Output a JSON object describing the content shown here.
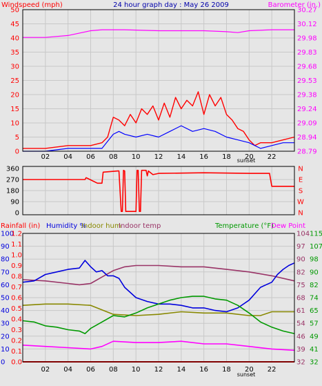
{
  "chart_data": [
    {
      "type": "line",
      "title": "24 hour graph day : May 26 2009",
      "ylabel_left": "Windspeed (mph)",
      "ylabel_right": "Barometer (in.)",
      "y_ticks_left": [
        "0",
        "5",
        "10",
        "15",
        "20",
        "25",
        "30",
        "35",
        "40",
        "45",
        "50"
      ],
      "y_ticks_right": [
        "28.79",
        "28.94",
        "29.09",
        "29.24",
        "29.38",
        "29.53",
        "29.68",
        "29.83",
        "29.98",
        "30.12",
        "30.27"
      ],
      "x_ticks": [
        "02",
        "04",
        "06",
        "08",
        "10",
        "12",
        "14",
        "16",
        "18",
        "20",
        "22",
        ""
      ],
      "sunset_label": "sunset",
      "ylim_left": [
        0,
        50
      ],
      "ylim_right": [
        28.79,
        30.27
      ],
      "grid": true,
      "series": [
        {
          "key": "barometer",
          "axis": "right",
          "color": "#ff00ff",
          "x": [
            0,
            2,
            4,
            6,
            7,
            9,
            12,
            14,
            16,
            18,
            19,
            20,
            22,
            24
          ],
          "y": [
            29.98,
            29.98,
            30.0,
            30.05,
            30.06,
            30.06,
            30.05,
            30.05,
            30.05,
            30.04,
            30.03,
            30.05,
            30.06,
            30.06
          ]
        },
        {
          "key": "wind_gust",
          "axis": "left",
          "color": "#ff0000",
          "x": [
            0,
            2,
            4,
            6,
            7,
            7.5,
            8,
            8.5,
            9,
            9.5,
            10,
            10.5,
            11,
            11.5,
            12,
            12.5,
            13,
            13.5,
            14,
            14.5,
            15,
            15.5,
            16,
            16.5,
            17,
            17.5,
            18,
            18.5,
            19,
            19.5,
            20,
            20.5,
            21,
            22,
            23,
            24
          ],
          "y": [
            1,
            1,
            2,
            2,
            3,
            5,
            12,
            11,
            9,
            13,
            10,
            15,
            13,
            16,
            11,
            17,
            12,
            19,
            15,
            18,
            16,
            21,
            13,
            20,
            16,
            19,
            13,
            11,
            8,
            7,
            4,
            2,
            3,
            3,
            4,
            5
          ]
        },
        {
          "key": "wind_avg",
          "axis": "left",
          "color": "#0000ff",
          "x": [
            0,
            2,
            4,
            6,
            7,
            8,
            8.5,
            9,
            10,
            11,
            12,
            13,
            14,
            15,
            16,
            17,
            18,
            19,
            20,
            21,
            22,
            23,
            24
          ],
          "y": [
            0,
            0,
            1,
            1,
            1,
            6,
            7,
            6,
            5,
            6,
            5,
            7,
            9,
            7,
            8,
            7,
            5,
            4,
            3,
            1,
            2,
            3,
            3
          ]
        }
      ]
    },
    {
      "type": "line",
      "ylabel_left_ticks": [
        "0",
        "90",
        "180",
        "270",
        "360"
      ],
      "ylabel_right_ticks": [
        "N",
        "W",
        "S",
        "E",
        "N"
      ],
      "ylim": [
        0,
        360
      ],
      "series": [
        {
          "key": "wind_direction",
          "color": "#ff0000",
          "x": [
            0,
            5.5,
            5.6,
            6.6,
            7,
            7.1,
            8.4,
            8.5,
            8.7,
            8.8,
            8.9,
            9,
            9.1,
            10,
            10.1,
            10.2,
            10.3,
            10.4,
            10.5,
            10.9,
            11,
            11.1,
            11.5,
            12,
            16,
            20,
            21.8,
            22,
            24
          ],
          "y": [
            270,
            270,
            285,
            240,
            240,
            330,
            340,
            340,
            10,
            10,
            345,
            340,
            10,
            10,
            345,
            345,
            10,
            10,
            345,
            345,
            300,
            340,
            310,
            320,
            325,
            320,
            320,
            215,
            215
          ]
        }
      ]
    },
    {
      "type": "line",
      "labels_left": [
        "Rainfall (in)",
        "Humidity %",
        "Indoor hum",
        "Indoor temp"
      ],
      "labels_right": [
        "Temperature (°F)",
        "Dew Point"
      ],
      "rain_ticks": [
        "0.0",
        "0.1",
        "0.2",
        "0.3",
        "0.4",
        "0.5",
        "0.6",
        "0.7",
        "0.8",
        "0.9",
        "1.0",
        "1.1",
        "1.2"
      ],
      "humidity_ticks": [
        "0",
        "10",
        "20",
        "30",
        "40",
        "50",
        "60",
        "70",
        "80",
        "90",
        "100"
      ],
      "temp_ticks_a": [
        "32",
        "39",
        "46",
        "54",
        "61",
        "68",
        "75",
        "82",
        "90",
        "97",
        "104"
      ],
      "temp_ticks_b": [
        "32",
        "41",
        "49",
        "57",
        "65",
        "74",
        "82",
        "90",
        "98",
        "107",
        "115"
      ],
      "x_ticks": [
        "02",
        "04",
        "06",
        "08",
        "10",
        "12",
        "14",
        "16",
        "18",
        "20",
        "22",
        ""
      ],
      "sunset_label": "sunset",
      "ylim_humidity": [
        0,
        100
      ],
      "grid": true,
      "series": [
        {
          "key": "indoor_temp",
          "axis": "humidity",
          "color": "#993366",
          "x": [
            0,
            2,
            4,
            5,
            6,
            7,
            8,
            9,
            10,
            12,
            14,
            16,
            18,
            20,
            22,
            24
          ],
          "y": [
            64,
            63,
            61,
            60,
            61,
            66,
            71,
            74,
            75,
            75,
            74,
            74,
            72,
            70,
            67,
            63
          ]
        },
        {
          "key": "humidity",
          "axis": "humidity",
          "color": "#0000dd",
          "x": [
            0,
            1,
            2,
            3,
            4,
            5,
            5.5,
            6,
            6.5,
            7,
            7.5,
            8,
            8.5,
            9,
            10,
            11,
            12,
            13,
            14,
            15,
            16,
            17,
            18,
            19,
            20,
            21,
            22,
            22.5,
            23,
            23.5,
            24
          ],
          "y": [
            62,
            63,
            68,
            70,
            72,
            73,
            79,
            74,
            70,
            71,
            67,
            67,
            65,
            58,
            50,
            47,
            45,
            45,
            44,
            42,
            42,
            40,
            39,
            42,
            48,
            58,
            62,
            68,
            72,
            75,
            77
          ]
        },
        {
          "key": "indoor_hum",
          "axis": "humidity",
          "color": "#888800",
          "x": [
            0,
            2,
            4,
            6,
            8,
            10,
            12,
            14,
            16,
            18,
            20,
            21,
            22,
            24
          ],
          "y": [
            44,
            45,
            45,
            44,
            37,
            36,
            37,
            39,
            38,
            38,
            36,
            36,
            39,
            39
          ]
        },
        {
          "key": "temperature",
          "axis": "humidity",
          "color": "#009900",
          "x": [
            0,
            1,
            2,
            3,
            4,
            5,
            5.5,
            6,
            7,
            8,
            9,
            10,
            11,
            12,
            13,
            14,
            15,
            16,
            17,
            18,
            19,
            20,
            21,
            22,
            23,
            24
          ],
          "y": [
            32,
            31,
            28,
            27,
            25,
            24,
            22,
            26,
            31,
            36,
            35,
            38,
            42,
            45,
            48,
            50,
            51,
            51,
            49,
            48,
            44,
            38,
            31,
            27,
            24,
            22
          ]
        },
        {
          "key": "dew_point",
          "axis": "humidity",
          "color": "#ff00ff",
          "x": [
            0,
            2,
            4,
            6,
            7,
            8,
            10,
            12,
            14,
            16,
            18,
            20,
            22,
            24
          ],
          "y": [
            13,
            12,
            11,
            10,
            12,
            16,
            15,
            15,
            16,
            14,
            14,
            12,
            10,
            9
          ]
        },
        {
          "key": "rainfall",
          "axis": "humidity",
          "color": "#ff0000",
          "x": [
            0,
            24
          ],
          "y": [
            0,
            0
          ]
        }
      ]
    }
  ],
  "colors": {
    "background": "#e6e6e6",
    "grid": "#c8c8c8",
    "red": "#ff0000",
    "blue": "#0000ff",
    "magenta": "#ff00ff",
    "olive": "#888800",
    "green": "#009900",
    "maroon": "#993366"
  }
}
